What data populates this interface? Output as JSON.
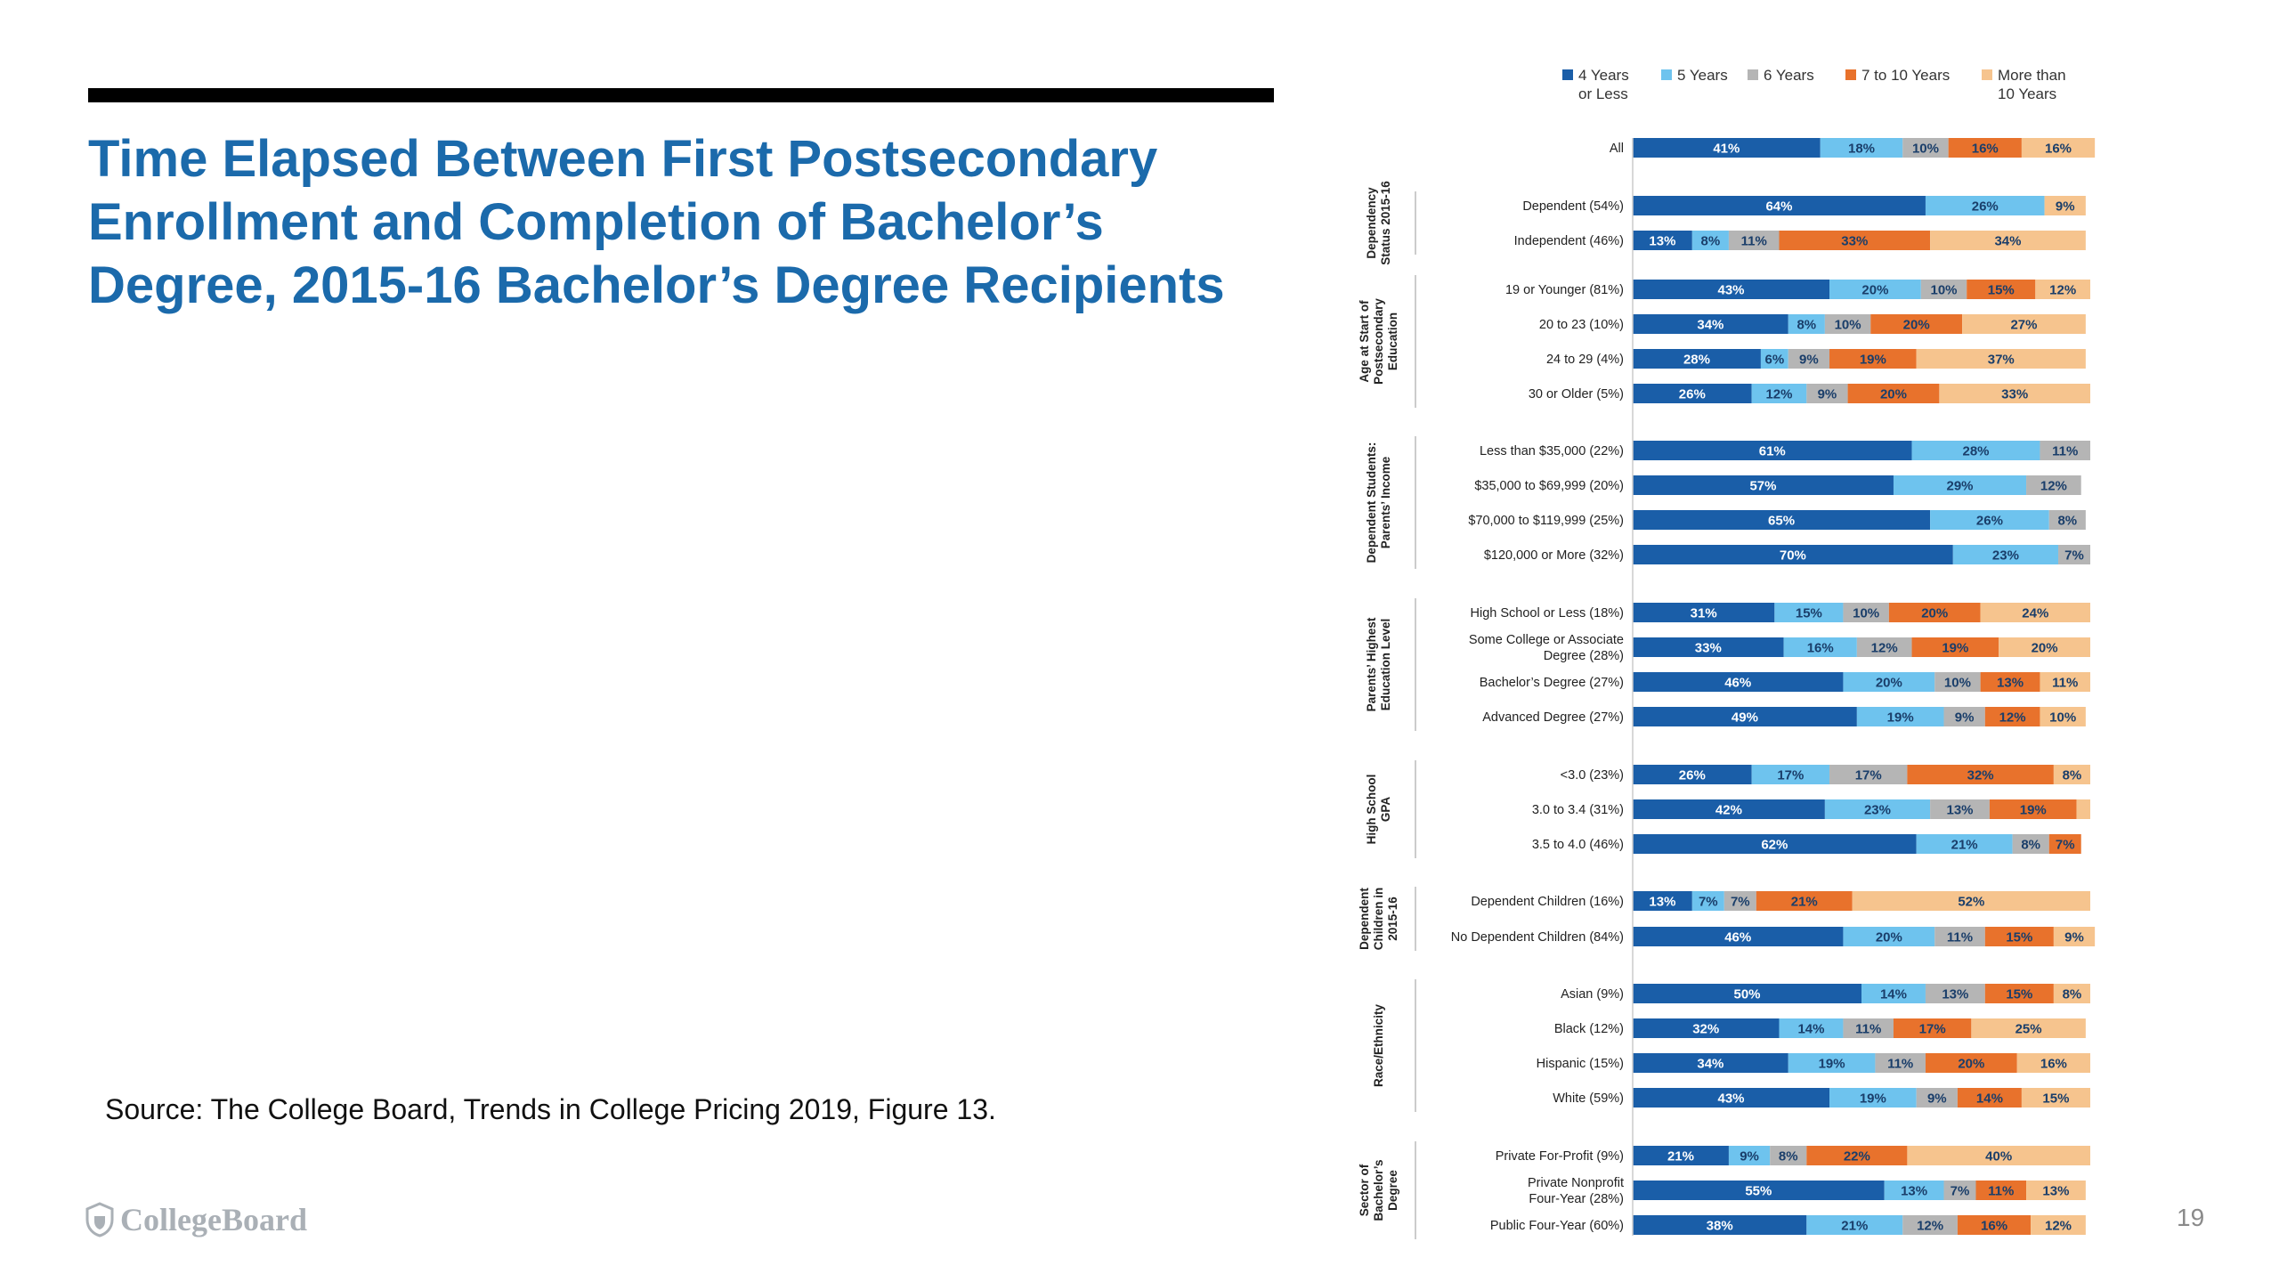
{
  "slide": {
    "title": "Time Elapsed Between First Postsecondary\nEnrollment and Completion of Bachelor’s\nDegree, 2015-16 Bachelor’s Degree Recipients",
    "source": "Source: The College Board, Trends in College Pricing 2019, Figure 13.",
    "logo_text": "CollegeBoard",
    "page_number": "19"
  },
  "chart_data": {
    "type": "bar",
    "orientation": "horizontal",
    "stacked": "100%",
    "legend_position": "top",
    "series": [
      {
        "name": "4 Years\nor Less",
        "color": "#1a5ea8",
        "label_color": "#ffffff"
      },
      {
        "name": "5 Years",
        "color": "#6ec3ee",
        "label_color": "#1a3e6a"
      },
      {
        "name": "6 Years",
        "color": "#b5b5b5",
        "label_color": "#1a3e6a"
      },
      {
        "name": "7 to 10 Years",
        "color": "#e8722c",
        "label_color": "#1a3e6a"
      },
      {
        "name": "More than\n10 Years",
        "color": "#f6c48e",
        "label_color": "#1a3e6a"
      }
    ],
    "groups": [
      {
        "name": "",
        "rows": [
          {
            "label": "All",
            "values": [
              41,
              18,
              10,
              16,
              16
            ]
          }
        ]
      },
      {
        "name": "Dependency\nStatus 2015-16",
        "rows": [
          {
            "label": "Dependent (54%)",
            "values": [
              64,
              26,
              0,
              0,
              9
            ]
          },
          {
            "label": "Independent (46%)",
            "values": [
              13,
              8,
              11,
              33,
              34
            ]
          }
        ]
      },
      {
        "name": "Age at Start of\nPostsecondary\nEducation",
        "rows": [
          {
            "label": "19 or Younger (81%)",
            "values": [
              43,
              20,
              10,
              15,
              12
            ]
          },
          {
            "label": "20 to 23 (10%)",
            "values": [
              34,
              8,
              10,
              20,
              27
            ]
          },
          {
            "label": "24 to 29 (4%)",
            "values": [
              28,
              6,
              9,
              19,
              37
            ]
          },
          {
            "label": "30 or Older (5%)",
            "values": [
              26,
              12,
              9,
              20,
              33
            ]
          }
        ]
      },
      {
        "name": "Dependent Students:\nParents’ Income",
        "rows": [
          {
            "label": "Less than $35,000 (22%)",
            "values": [
              61,
              28,
              11,
              0,
              0
            ]
          },
          {
            "label": "$35,000 to $69,999 (20%)",
            "values": [
              57,
              29,
              12,
              0,
              0
            ]
          },
          {
            "label": "$70,000 to $119,999 (25%)",
            "values": [
              65,
              26,
              8,
              0,
              0
            ]
          },
          {
            "label": "$120,000 or More (32%)",
            "values": [
              70,
              23,
              7,
              0,
              0
            ]
          }
        ]
      },
      {
        "name": "Parents’ Highest\nEducation Level",
        "rows": [
          {
            "label": "High School or Less (18%)",
            "values": [
              31,
              15,
              10,
              20,
              24
            ]
          },
          {
            "label": "Some College or Associate\nDegree (28%)",
            "values": [
              33,
              16,
              12,
              19,
              20
            ]
          },
          {
            "label": "Bachelor’s Degree (27%)",
            "values": [
              46,
              20,
              10,
              13,
              11
            ]
          },
          {
            "label": "Advanced Degree (27%)",
            "values": [
              49,
              19,
              9,
              12,
              10
            ]
          }
        ]
      },
      {
        "name": "High School\nGPA",
        "rows": [
          {
            "label": "<3.0 (23%)",
            "values": [
              26,
              17,
              17,
              32,
              8
            ]
          },
          {
            "label": "3.0 to 3.4 (31%)",
            "values": [
              42,
              23,
              13,
              19,
              3
            ]
          },
          {
            "label": "3.5 to 4.0 (46%)",
            "values": [
              62,
              21,
              8,
              7,
              0
            ]
          }
        ]
      },
      {
        "name": "Dependent\nChildren in\n2015-16",
        "rows": [
          {
            "label": "Dependent Children (16%)",
            "values": [
              13,
              7,
              7,
              21,
              52
            ]
          },
          {
            "label": "No Dependent Children (84%)",
            "values": [
              46,
              20,
              11,
              15,
              9
            ]
          }
        ]
      },
      {
        "name": "Race/Ethnicity",
        "rows": [
          {
            "label": "Asian (9%)",
            "values": [
              50,
              14,
              13,
              15,
              8
            ]
          },
          {
            "label": "Black (12%)",
            "values": [
              32,
              14,
              11,
              17,
              25
            ]
          },
          {
            "label": "Hispanic (15%)",
            "values": [
              34,
              19,
              11,
              20,
              16
            ]
          },
          {
            "label": "White (59%)",
            "values": [
              43,
              19,
              9,
              14,
              15
            ]
          }
        ]
      },
      {
        "name": "Sector of\nBachelor’s\nDegree",
        "rows": [
          {
            "label": "Private For-Profit (9%)",
            "values": [
              21,
              9,
              8,
              22,
              40
            ]
          },
          {
            "label": "Private Nonprofit\nFour-Year (28%)",
            "values": [
              55,
              13,
              7,
              11,
              13
            ]
          },
          {
            "label": "Public Four-Year (60%)",
            "values": [
              38,
              21,
              12,
              16,
              12
            ]
          }
        ]
      }
    ]
  }
}
